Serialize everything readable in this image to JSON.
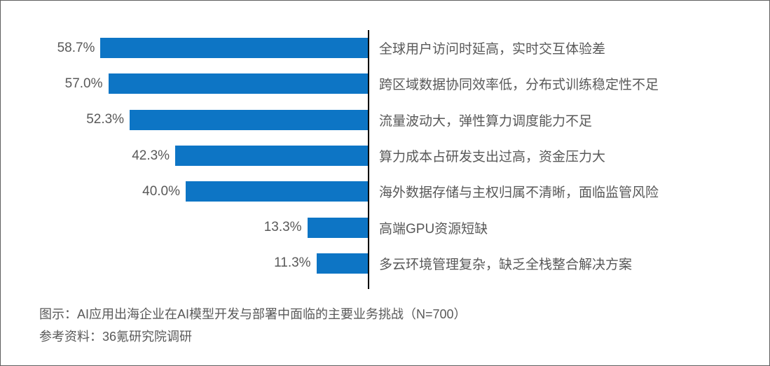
{
  "chart_data": {
    "type": "bar",
    "orientation": "horizontal",
    "bars_aligned": "right-to-baseline",
    "categories": [
      "全球用户访问时延高，实时交互体验差",
      "跨区域数据协同效率低，分布式训练稳定性不足",
      "流量波动大，弹性算力调度能力不足",
      "算力成本占研发支出过高，资金压力大",
      "海外数据存储与主权归属不清晰，面临监管风险",
      "高端GPU资源短缺",
      "多云环境管理复杂，缺乏全栈整合解决方案"
    ],
    "values": [
      58.7,
      57.0,
      52.3,
      42.3,
      40.0,
      13.3,
      11.3
    ],
    "value_labels": [
      "58.7%",
      "57.0%",
      "52.3%",
      "42.3%",
      "40.0%",
      "13.3%",
      "11.3%"
    ],
    "xlim": [
      0,
      60
    ],
    "grid": false,
    "legend": "none",
    "title": "AI应用出海企业在AI模型开发与部署中面临的主要业务挑战（N=700）"
  },
  "caption": {
    "line1": "图示：AI应用出海企业在AI模型开发与部署中面临的主要业务挑战（N=700）",
    "line2": "参考资料：36氪研究院调研"
  },
  "colors": {
    "bar": "#0d75c5",
    "text": "#595959",
    "axis": "#000000",
    "border": "#5f5f5f"
  }
}
